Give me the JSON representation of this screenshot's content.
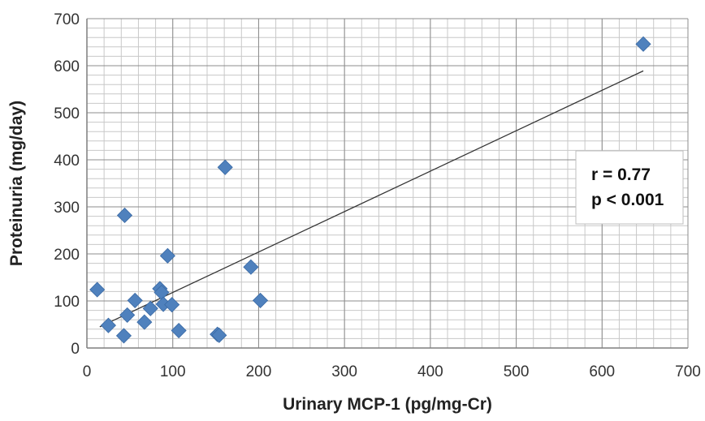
{
  "chart_data": {
    "type": "scatter",
    "xlabel": "Urinary MCP-1 (pg/mg-Cr)",
    "ylabel": "Proteinuria (mg/day)",
    "xlim": [
      0,
      700
    ],
    "ylim": [
      0,
      700
    ],
    "x_ticks": [
      0,
      100,
      200,
      300,
      400,
      500,
      600,
      700
    ],
    "y_ticks": [
      0,
      100,
      200,
      300,
      400,
      500,
      600,
      700
    ],
    "minor_grid_x_step": 20,
    "minor_grid_y_step": 20,
    "grid": true,
    "marker": "diamond",
    "marker_color": "#4F81BD",
    "points": [
      {
        "x": 12,
        "y": 124
      },
      {
        "x": 25,
        "y": 48
      },
      {
        "x": 43,
        "y": 26
      },
      {
        "x": 44,
        "y": 282
      },
      {
        "x": 47,
        "y": 70
      },
      {
        "x": 56,
        "y": 101
      },
      {
        "x": 67,
        "y": 55
      },
      {
        "x": 74,
        "y": 84
      },
      {
        "x": 85,
        "y": 126
      },
      {
        "x": 87,
        "y": 118
      },
      {
        "x": 89,
        "y": 93
      },
      {
        "x": 94,
        "y": 196
      },
      {
        "x": 99,
        "y": 92
      },
      {
        "x": 107,
        "y": 37
      },
      {
        "x": 152,
        "y": 29
      },
      {
        "x": 154,
        "y": 27
      },
      {
        "x": 161,
        "y": 384
      },
      {
        "x": 191,
        "y": 172
      },
      {
        "x": 202,
        "y": 101
      },
      {
        "x": 648,
        "y": 646
      }
    ],
    "trendline": {
      "x": [
        15,
        648
      ],
      "y": [
        45,
        589
      ],
      "color": "#333333"
    },
    "annotation": {
      "lines": [
        "r = 0.77",
        "p < 0.001"
      ]
    }
  }
}
